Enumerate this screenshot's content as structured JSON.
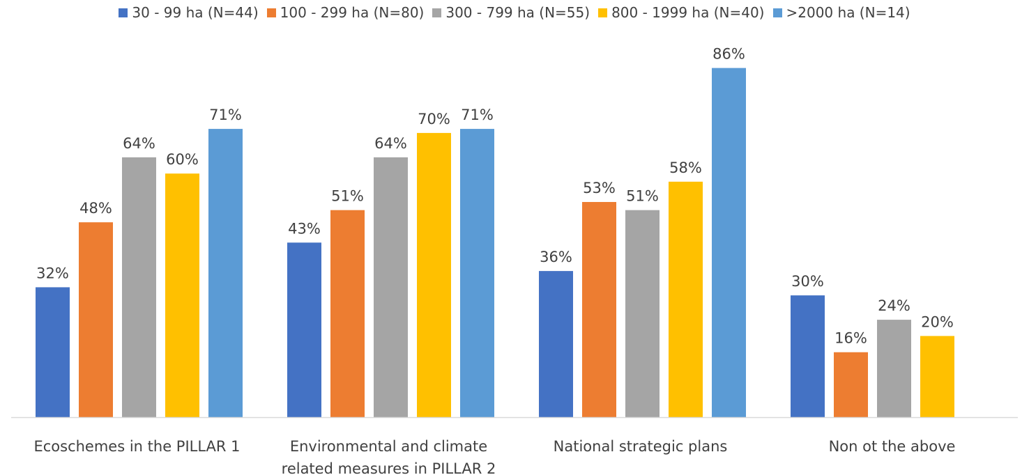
{
  "chart_data": {
    "type": "bar",
    "categories": [
      [
        "Ecoschemes in the PILLAR 1"
      ],
      [
        "Environmental and climate",
        "related measures in PILLAR 2"
      ],
      [
        "National strategic plans"
      ],
      [
        "Non ot the above"
      ]
    ],
    "series": [
      {
        "name": "30 - 99 ha (N=44)",
        "color": "#4472C4",
        "values": [
          32,
          43,
          36,
          30
        ],
        "labels": [
          "32%",
          "43%",
          "36%",
          "30%"
        ]
      },
      {
        "name": "100 - 299 ha (N=80)",
        "color": "#ED7D31",
        "values": [
          48,
          51,
          53,
          16
        ],
        "labels": [
          "48%",
          "51%",
          "53%",
          "16%"
        ]
      },
      {
        "name": "300 - 799 ha (N=55)",
        "color": "#A5A5A5",
        "values": [
          64,
          64,
          51,
          24
        ],
        "labels": [
          "64%",
          "64%",
          "51%",
          "24%"
        ]
      },
      {
        "name": "800 - 1999 ha (N=40)",
        "color": "#FFC000",
        "values": [
          60,
          70,
          58,
          20
        ],
        "labels": [
          "60%",
          "70%",
          "58%",
          "20%"
        ]
      },
      {
        "name": ">2000 ha (N=14)",
        "color": "#5B9BD5",
        "values": [
          71,
          71,
          86,
          null
        ],
        "labels": [
          "71%",
          "71%",
          "86%",
          ""
        ]
      }
    ],
    "ylim": [
      0,
      90
    ],
    "grid": false,
    "legend_position": "top",
    "unit": "%"
  }
}
